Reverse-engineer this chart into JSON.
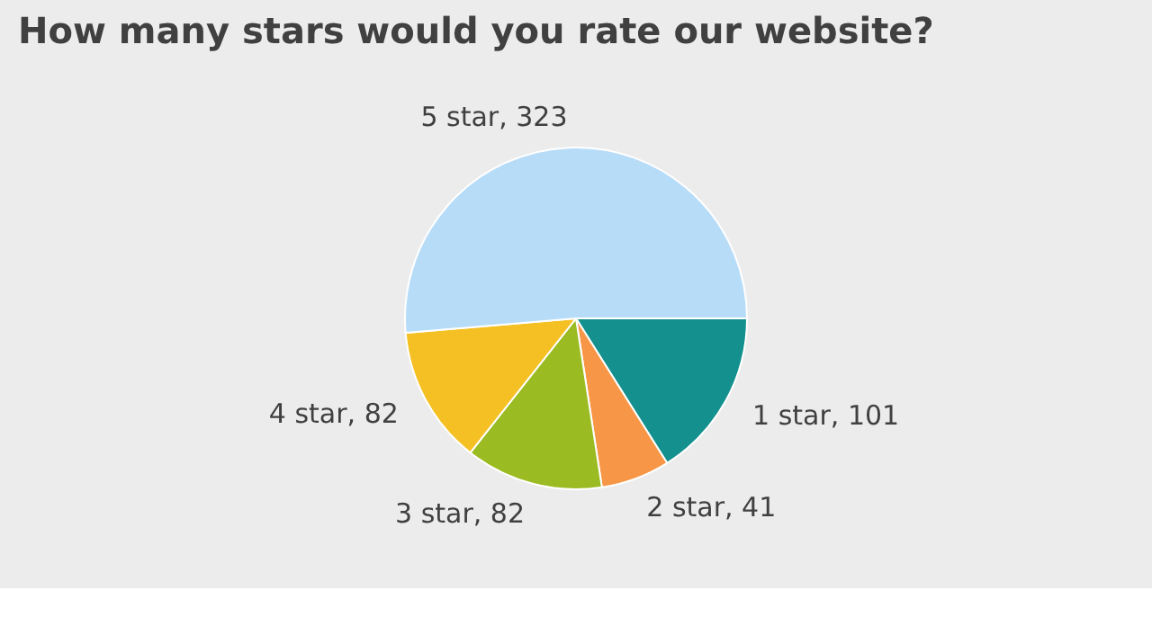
{
  "chart_data": {
    "type": "pie",
    "title": "How many stars would you rate our website?",
    "categories": [
      "1 star, 101",
      "2 star, 41",
      "3 star, 82",
      "4 star, 82",
      "5 star, 323"
    ],
    "values": [
      101,
      41,
      82,
      82,
      323
    ],
    "colors": [
      "#14918e",
      "#f79646",
      "#9bbb22",
      "#f5c024",
      "#b7dcf8"
    ]
  }
}
